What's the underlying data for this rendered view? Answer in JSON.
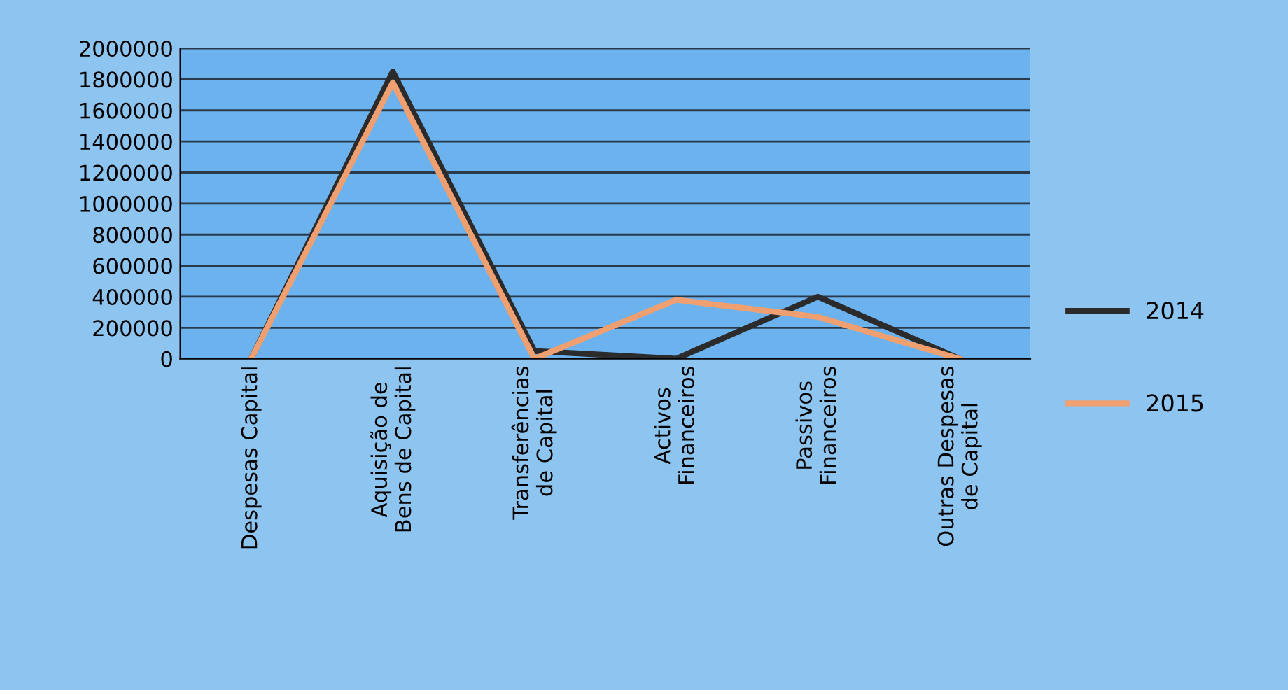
{
  "chart_data": {
    "type": "line",
    "categories": [
      "Despesas Capital",
      "Aquisição de\nBens de Capital",
      "Transferências\nde Capital",
      "Activos\nFinanceiros",
      "Passivos\nFinanceiros",
      "Outras Despesas\nde Capital"
    ],
    "series": [
      {
        "name": "2014",
        "color": "#2b2b2b",
        "values": [
          0,
          1850000,
          50000,
          0,
          400000,
          0
        ]
      },
      {
        "name": "2015",
        "color": "#f0a070",
        "values": [
          0,
          1780000,
          0,
          380000,
          270000,
          0
        ]
      }
    ],
    "ylim": [
      0,
      2000000
    ],
    "yticks": [
      0,
      200000,
      400000,
      600000,
      800000,
      1000000,
      1200000,
      1400000,
      1600000,
      1800000,
      2000000
    ],
    "grid": "y",
    "legend": "right",
    "marker": "none",
    "line_style": "solid"
  }
}
